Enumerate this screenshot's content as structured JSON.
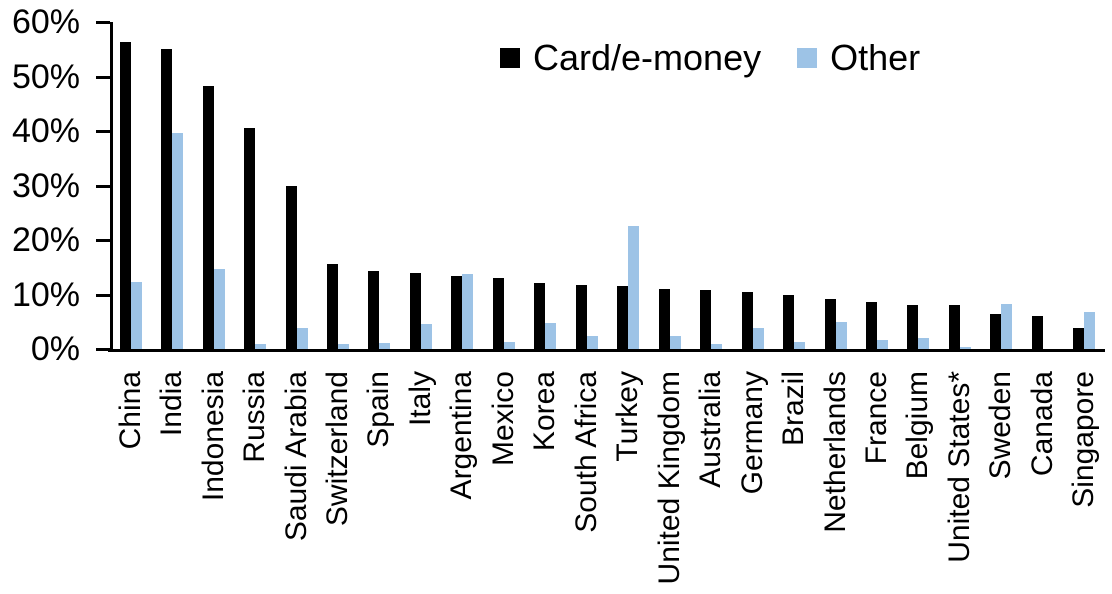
{
  "chart_data": {
    "type": "bar",
    "title": "",
    "grid": false,
    "legend_position": "top-center",
    "ylim": [
      0,
      60
    ],
    "ytick_labels": [
      "0%",
      "10%",
      "20%",
      "30%",
      "40%",
      "50%",
      "60%"
    ],
    "categories": [
      "China",
      "India",
      "Indonesia",
      "Russia",
      "Saudi Arabia",
      "Switzerland",
      "Spain",
      "Italy",
      "Argentina",
      "Mexico",
      "Korea",
      "South Africa",
      "Turkey",
      "United Kingdom",
      "Australia",
      "Germany",
      "Brazil",
      "Netherlands",
      "France",
      "Belgium",
      "United States*",
      "Sweden",
      "Canada",
      "Singapore"
    ],
    "series": [
      {
        "name": "Card/e-money",
        "color": "#000000",
        "values": [
          56.4,
          55.1,
          48.3,
          40.6,
          29.9,
          15.6,
          14.3,
          14.0,
          13.4,
          13.0,
          12.2,
          11.7,
          11.6,
          11.0,
          10.8,
          10.5,
          9.9,
          9.2,
          8.6,
          8.1,
          8.0,
          6.5,
          6.1,
          3.9
        ]
      },
      {
        "name": "Other",
        "color": "#9DC3E6",
        "values": [
          12.3,
          39.7,
          14.6,
          1.0,
          3.9,
          0.9,
          1.1,
          4.6,
          13.8,
          1.3,
          4.7,
          2.4,
          22.5,
          2.3,
          1.0,
          3.9,
          1.2,
          4.9,
          1.6,
          2.1,
          0.3,
          8.2,
          0.0,
          6.7
        ]
      }
    ]
  }
}
